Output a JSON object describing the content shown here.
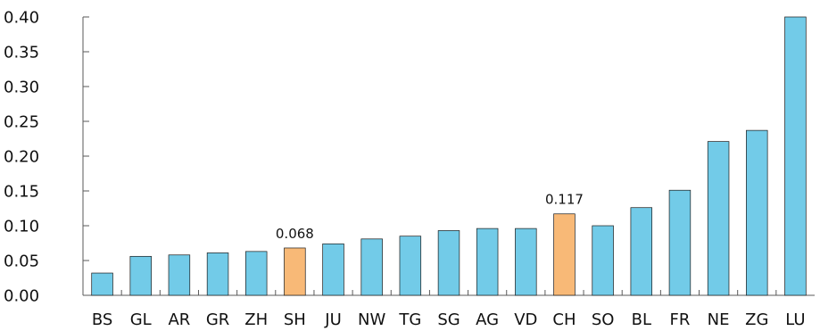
{
  "chart_data": {
    "type": "bar",
    "categories": [
      "BS",
      "GL",
      "AR",
      "GR",
      "ZH",
      "SH",
      "JU",
      "NW",
      "TG",
      "SG",
      "AG",
      "VD",
      "CH",
      "SO",
      "BL",
      "FR",
      "NE",
      "ZG",
      "LU"
    ],
    "values": [
      0.032,
      0.056,
      0.058,
      0.061,
      0.063,
      0.068,
      0.074,
      0.081,
      0.085,
      0.093,
      0.096,
      0.096,
      0.117,
      0.1,
      0.126,
      0.151,
      0.221,
      0.237,
      0.4
    ],
    "highlight": [
      "SH",
      "CH"
    ],
    "data_labels": [
      {
        "category": "SH",
        "text": "0.068"
      },
      {
        "category": "CH",
        "text": "0.117"
      }
    ],
    "y_ticks": [
      "0.00",
      "0.05",
      "0.10",
      "0.15",
      "0.20",
      "0.25",
      "0.30",
      "0.35",
      "0.40"
    ],
    "ylim": [
      0,
      0.4
    ],
    "title": "",
    "xlabel": "",
    "ylabel": "",
    "grid": false,
    "colors": {
      "bar": "#72cbe8",
      "highlight": "#f8b977",
      "axis": "#5a5a5a",
      "text": "#111111"
    }
  }
}
